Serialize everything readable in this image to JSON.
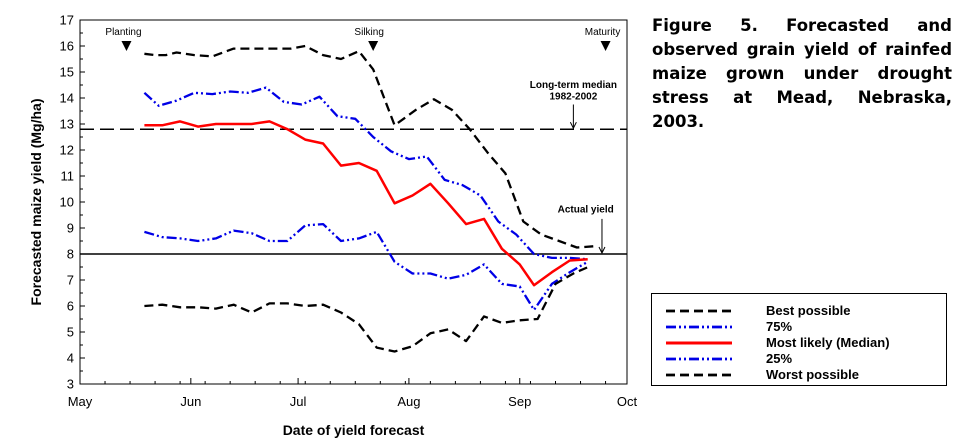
{
  "caption": "Figure 5. Forecasted and observed grain yield of rainfed maize grown under drought stress at Mead, Nebraska, 2003.",
  "chart_data": {
    "type": "line",
    "xlabel": "Date of yield forecast",
    "ylabel": "Forecasted maize yield (Mg/ha)",
    "ylim": [
      3,
      17
    ],
    "yticks": [
      3,
      4,
      5,
      6,
      7,
      8,
      9,
      10,
      11,
      12,
      13,
      14,
      15,
      16,
      17
    ],
    "xlim": [
      "2003-05-01",
      "2003-10-01"
    ],
    "xticks": [
      {
        "date": "2003-05-01",
        "label": "May"
      },
      {
        "date": "2003-06-01",
        "label": "Jun"
      },
      {
        "date": "2003-07-01",
        "label": "Jul"
      },
      {
        "date": "2003-08-01",
        "label": "Aug"
      },
      {
        "date": "2003-09-01",
        "label": "Sep"
      },
      {
        "date": "2003-10-01",
        "label": "Oct"
      }
    ],
    "stage_markers": [
      {
        "label": "Planting",
        "date": "2003-05-14"
      },
      {
        "label": "Silking",
        "date": "2003-07-22"
      },
      {
        "label": "Maturity",
        "date": "2003-09-25"
      }
    ],
    "reference_lines": [
      {
        "label": "Long-term median",
        "sublabel": "1982-2002",
        "y": 12.8,
        "style": "dashed",
        "label_date": "2003-09-16"
      },
      {
        "label": "Actual yield",
        "y": 8.0,
        "style": "solid",
        "label_date": "2003-09-20"
      }
    ],
    "series": [
      {
        "name": "Best possible",
        "color": "#000000",
        "style": "dash",
        "points": [
          [
            "2003-05-19",
            15.7
          ],
          [
            "2003-05-22",
            15.65
          ],
          [
            "2003-05-25",
            15.65
          ],
          [
            "2003-05-28",
            15.75
          ],
          [
            "2003-06-02",
            15.65
          ],
          [
            "2003-06-07",
            15.6
          ],
          [
            "2003-06-13",
            15.9
          ],
          [
            "2003-06-18",
            15.9
          ],
          [
            "2003-06-24",
            15.9
          ],
          [
            "2003-06-29",
            15.9
          ],
          [
            "2003-07-03",
            16.0
          ],
          [
            "2003-07-08",
            15.65
          ],
          [
            "2003-07-13",
            15.5
          ],
          [
            "2003-07-18",
            15.8
          ],
          [
            "2003-07-22",
            15.1
          ],
          [
            "2003-07-28",
            12.95
          ],
          [
            "2003-08-03",
            13.55
          ],
          [
            "2003-08-08",
            13.95
          ],
          [
            "2003-08-13",
            13.55
          ],
          [
            "2003-08-18",
            12.8
          ],
          [
            "2003-08-23",
            11.9
          ],
          [
            "2003-08-28",
            11.1
          ],
          [
            "2003-09-02",
            9.25
          ],
          [
            "2003-09-07",
            8.75
          ],
          [
            "2003-09-12",
            8.5
          ],
          [
            "2003-09-17",
            8.25
          ],
          [
            "2003-09-22",
            8.3
          ]
        ]
      },
      {
        "name": "75%",
        "color": "#0000e6",
        "style": "dashdotdot",
        "points": [
          [
            "2003-05-19",
            14.2
          ],
          [
            "2003-05-23",
            13.7
          ],
          [
            "2003-05-28",
            13.9
          ],
          [
            "2003-06-02",
            14.2
          ],
          [
            "2003-06-07",
            14.15
          ],
          [
            "2003-06-12",
            14.25
          ],
          [
            "2003-06-17",
            14.2
          ],
          [
            "2003-06-22",
            14.4
          ],
          [
            "2003-06-27",
            13.85
          ],
          [
            "2003-07-02",
            13.75
          ],
          [
            "2003-07-07",
            14.05
          ],
          [
            "2003-07-12",
            13.3
          ],
          [
            "2003-07-17",
            13.2
          ],
          [
            "2003-07-22",
            12.5
          ],
          [
            "2003-07-27",
            11.95
          ],
          [
            "2003-08-01",
            11.65
          ],
          [
            "2003-08-06",
            11.75
          ],
          [
            "2003-08-11",
            10.85
          ],
          [
            "2003-08-16",
            10.65
          ],
          [
            "2003-08-21",
            10.25
          ],
          [
            "2003-08-26",
            9.25
          ],
          [
            "2003-08-31",
            8.75
          ],
          [
            "2003-09-05",
            8.0
          ],
          [
            "2003-09-10",
            7.85
          ],
          [
            "2003-09-15",
            7.85
          ],
          [
            "2003-09-20",
            7.8
          ]
        ]
      },
      {
        "name": "Most likely (Median)",
        "color": "#ff0000",
        "style": "solid",
        "points": [
          [
            "2003-05-19",
            12.95
          ],
          [
            "2003-05-24",
            12.95
          ],
          [
            "2003-05-29",
            13.1
          ],
          [
            "2003-06-03",
            12.9
          ],
          [
            "2003-06-08",
            13.0
          ],
          [
            "2003-06-13",
            13.0
          ],
          [
            "2003-06-18",
            13.0
          ],
          [
            "2003-06-23",
            13.1
          ],
          [
            "2003-06-28",
            12.8
          ],
          [
            "2003-07-03",
            12.4
          ],
          [
            "2003-07-08",
            12.25
          ],
          [
            "2003-07-13",
            11.4
          ],
          [
            "2003-07-18",
            11.5
          ],
          [
            "2003-07-23",
            11.2
          ],
          [
            "2003-07-28",
            9.95
          ],
          [
            "2003-08-02",
            10.25
          ],
          [
            "2003-08-07",
            10.7
          ],
          [
            "2003-08-12",
            9.95
          ],
          [
            "2003-08-17",
            9.15
          ],
          [
            "2003-08-22",
            9.35
          ],
          [
            "2003-08-27",
            8.2
          ],
          [
            "2003-09-01",
            7.6
          ],
          [
            "2003-09-05",
            6.8
          ],
          [
            "2003-09-10",
            7.3
          ],
          [
            "2003-09-15",
            7.75
          ],
          [
            "2003-09-20",
            7.8
          ]
        ]
      },
      {
        "name": "25%",
        "color": "#0000e6",
        "style": "dashdotdot",
        "points": [
          [
            "2003-05-19",
            8.85
          ],
          [
            "2003-05-24",
            8.65
          ],
          [
            "2003-05-29",
            8.6
          ],
          [
            "2003-06-03",
            8.5
          ],
          [
            "2003-06-08",
            8.6
          ],
          [
            "2003-06-13",
            8.9
          ],
          [
            "2003-06-18",
            8.8
          ],
          [
            "2003-06-23",
            8.5
          ],
          [
            "2003-06-28",
            8.5
          ],
          [
            "2003-07-03",
            9.1
          ],
          [
            "2003-07-08",
            9.15
          ],
          [
            "2003-07-13",
            8.5
          ],
          [
            "2003-07-18",
            8.6
          ],
          [
            "2003-07-23",
            8.85
          ],
          [
            "2003-07-28",
            7.7
          ],
          [
            "2003-08-02",
            7.25
          ],
          [
            "2003-08-07",
            7.25
          ],
          [
            "2003-08-12",
            7.05
          ],
          [
            "2003-08-17",
            7.2
          ],
          [
            "2003-08-22",
            7.6
          ],
          [
            "2003-08-27",
            6.85
          ],
          [
            "2003-09-01",
            6.75
          ],
          [
            "2003-09-05",
            5.85
          ],
          [
            "2003-09-10",
            6.85
          ],
          [
            "2003-09-15",
            7.3
          ],
          [
            "2003-09-20",
            7.7
          ]
        ]
      },
      {
        "name": "Worst possible",
        "color": "#000000",
        "style": "dash",
        "points": [
          [
            "2003-05-19",
            6.0
          ],
          [
            "2003-05-24",
            6.05
          ],
          [
            "2003-05-29",
            5.95
          ],
          [
            "2003-06-03",
            5.95
          ],
          [
            "2003-06-08",
            5.9
          ],
          [
            "2003-06-13",
            6.05
          ],
          [
            "2003-06-18",
            5.75
          ],
          [
            "2003-06-23",
            6.1
          ],
          [
            "2003-06-28",
            6.1
          ],
          [
            "2003-07-03",
            6.0
          ],
          [
            "2003-07-08",
            6.05
          ],
          [
            "2003-07-13",
            5.75
          ],
          [
            "2003-07-18",
            5.3
          ],
          [
            "2003-07-23",
            4.4
          ],
          [
            "2003-07-28",
            4.25
          ],
          [
            "2003-08-02",
            4.45
          ],
          [
            "2003-08-07",
            4.95
          ],
          [
            "2003-08-12",
            5.1
          ],
          [
            "2003-08-17",
            4.65
          ],
          [
            "2003-08-22",
            5.6
          ],
          [
            "2003-08-27",
            5.35
          ],
          [
            "2003-09-01",
            5.45
          ],
          [
            "2003-09-06",
            5.5
          ],
          [
            "2003-09-11",
            6.85
          ],
          [
            "2003-09-16",
            7.25
          ],
          [
            "2003-09-21",
            7.55
          ]
        ]
      }
    ]
  }
}
